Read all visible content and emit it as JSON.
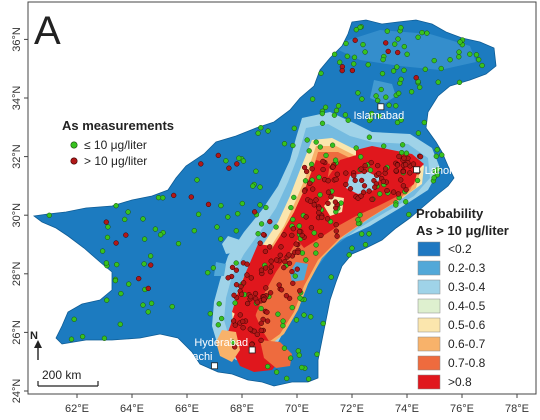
{
  "panel_label": "A",
  "axes": {
    "lat_ticks": [
      "36°N",
      "34°N",
      "32°N",
      "30°N",
      "28°N",
      "26°N",
      "24°N"
    ],
    "lon_ticks": [
      "62°E",
      "64°E",
      "66°E",
      "68°E",
      "70°E",
      "72°E",
      "74°E",
      "76°E",
      "78°E"
    ]
  },
  "measurements_legend": {
    "title": "As measurements",
    "items": [
      {
        "label": "≤ 10 μg/liter",
        "color": "#37c21f"
      },
      {
        "label": "> 10 μg/liter",
        "color": "#b01818"
      }
    ]
  },
  "probability_legend": {
    "title_line1": "Probability",
    "title_line2": "As > 10 μg/liter",
    "classes": [
      {
        "label": "<0.2",
        "color": "#1f78c1"
      },
      {
        "label": "0.2-0.3",
        "color": "#52a8d8"
      },
      {
        "label": "0.3-0.4",
        "color": "#9fd3e8"
      },
      {
        "label": "0.4-0.5",
        "color": "#def0cf"
      },
      {
        "label": "0.5-0.6",
        "color": "#fbe6ad"
      },
      {
        "label": "0.6-0.7",
        "color": "#f8b26a"
      },
      {
        "label": "0.7-0.8",
        "color": "#ee6b3e"
      },
      {
        "label": ">0.8",
        "color": "#e0171d"
      }
    ]
  },
  "cities": [
    {
      "name": "Islamabad",
      "lon": 73.05,
      "lat": 33.7
    },
    {
      "name": "Lahore",
      "lon": 74.35,
      "lat": 31.55
    },
    {
      "name": "Hyderabad",
      "lon": 68.37,
      "lat": 25.4
    },
    {
      "name": "Karachi",
      "lon": 67.0,
      "lat": 24.86
    }
  ],
  "north_arrow_label": "N",
  "scale_bar_label": "200 km"
}
